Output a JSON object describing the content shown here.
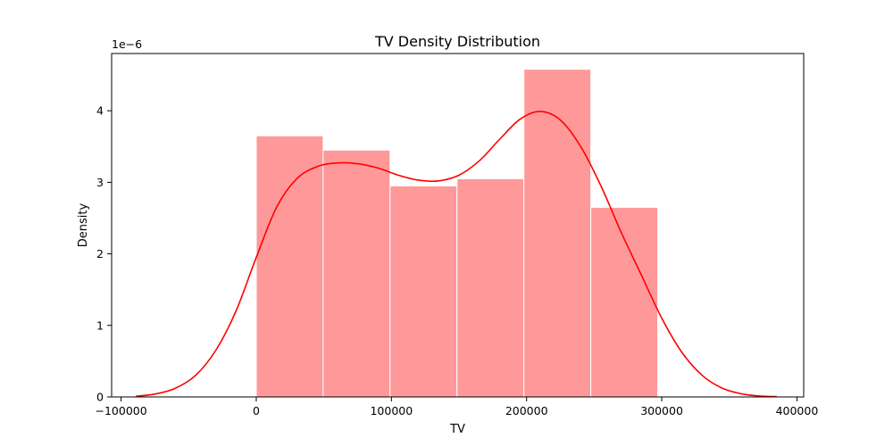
{
  "chart_data": {
    "type": "histogram",
    "title": "TV Density Distribution",
    "xlabel": "TV",
    "ylabel": "Density",
    "y_offset_text": "1e−6",
    "y_scale_factor": 1e-06,
    "xlim": [
      -107000,
      405000
    ],
    "ylim": [
      0,
      4.8
    ],
    "x_ticks": [
      -100000,
      0,
      100000,
      200000,
      300000,
      400000
    ],
    "x_tick_labels": [
      "−100000",
      "0",
      "100000",
      "200000",
      "300000",
      "400000"
    ],
    "y_ticks": [
      0,
      1,
      2,
      3,
      4
    ],
    "y_tick_labels": [
      "0",
      "1",
      "2",
      "3",
      "4"
    ],
    "bins": [
      {
        "x0": 0,
        "x1": 49500,
        "density": 3.65
      },
      {
        "x0": 49500,
        "x1": 99000,
        "density": 3.45
      },
      {
        "x0": 99000,
        "x1": 148500,
        "density": 2.95
      },
      {
        "x0": 148500,
        "x1": 198000,
        "density": 3.05
      },
      {
        "x0": 198000,
        "x1": 247500,
        "density": 4.58
      },
      {
        "x0": 247500,
        "x1": 297000,
        "density": 2.65
      }
    ],
    "kde": {
      "x": [
        -89000,
        -75000,
        -60000,
        -45000,
        -30000,
        -15000,
        0,
        15000,
        30000,
        45000,
        60000,
        75000,
        90000,
        105000,
        120000,
        135000,
        150000,
        165000,
        180000,
        195000,
        210000,
        225000,
        240000,
        255000,
        270000,
        285000,
        300000,
        315000,
        330000,
        345000,
        360000,
        375000,
        385000
      ],
      "y": [
        0.01,
        0.04,
        0.12,
        0.3,
        0.65,
        1.2,
        1.95,
        2.65,
        3.05,
        3.22,
        3.27,
        3.26,
        3.2,
        3.1,
        3.03,
        3.02,
        3.1,
        3.3,
        3.6,
        3.88,
        3.99,
        3.87,
        3.5,
        2.95,
        2.3,
        1.7,
        1.1,
        0.62,
        0.3,
        0.12,
        0.04,
        0.01,
        0.005
      ]
    },
    "colors": {
      "bar_fill": "#ff9999",
      "bar_edge": "#ffffff",
      "kde_line": "#ff0000",
      "axes": "#000000"
    },
    "grid": false,
    "legend": "none"
  }
}
